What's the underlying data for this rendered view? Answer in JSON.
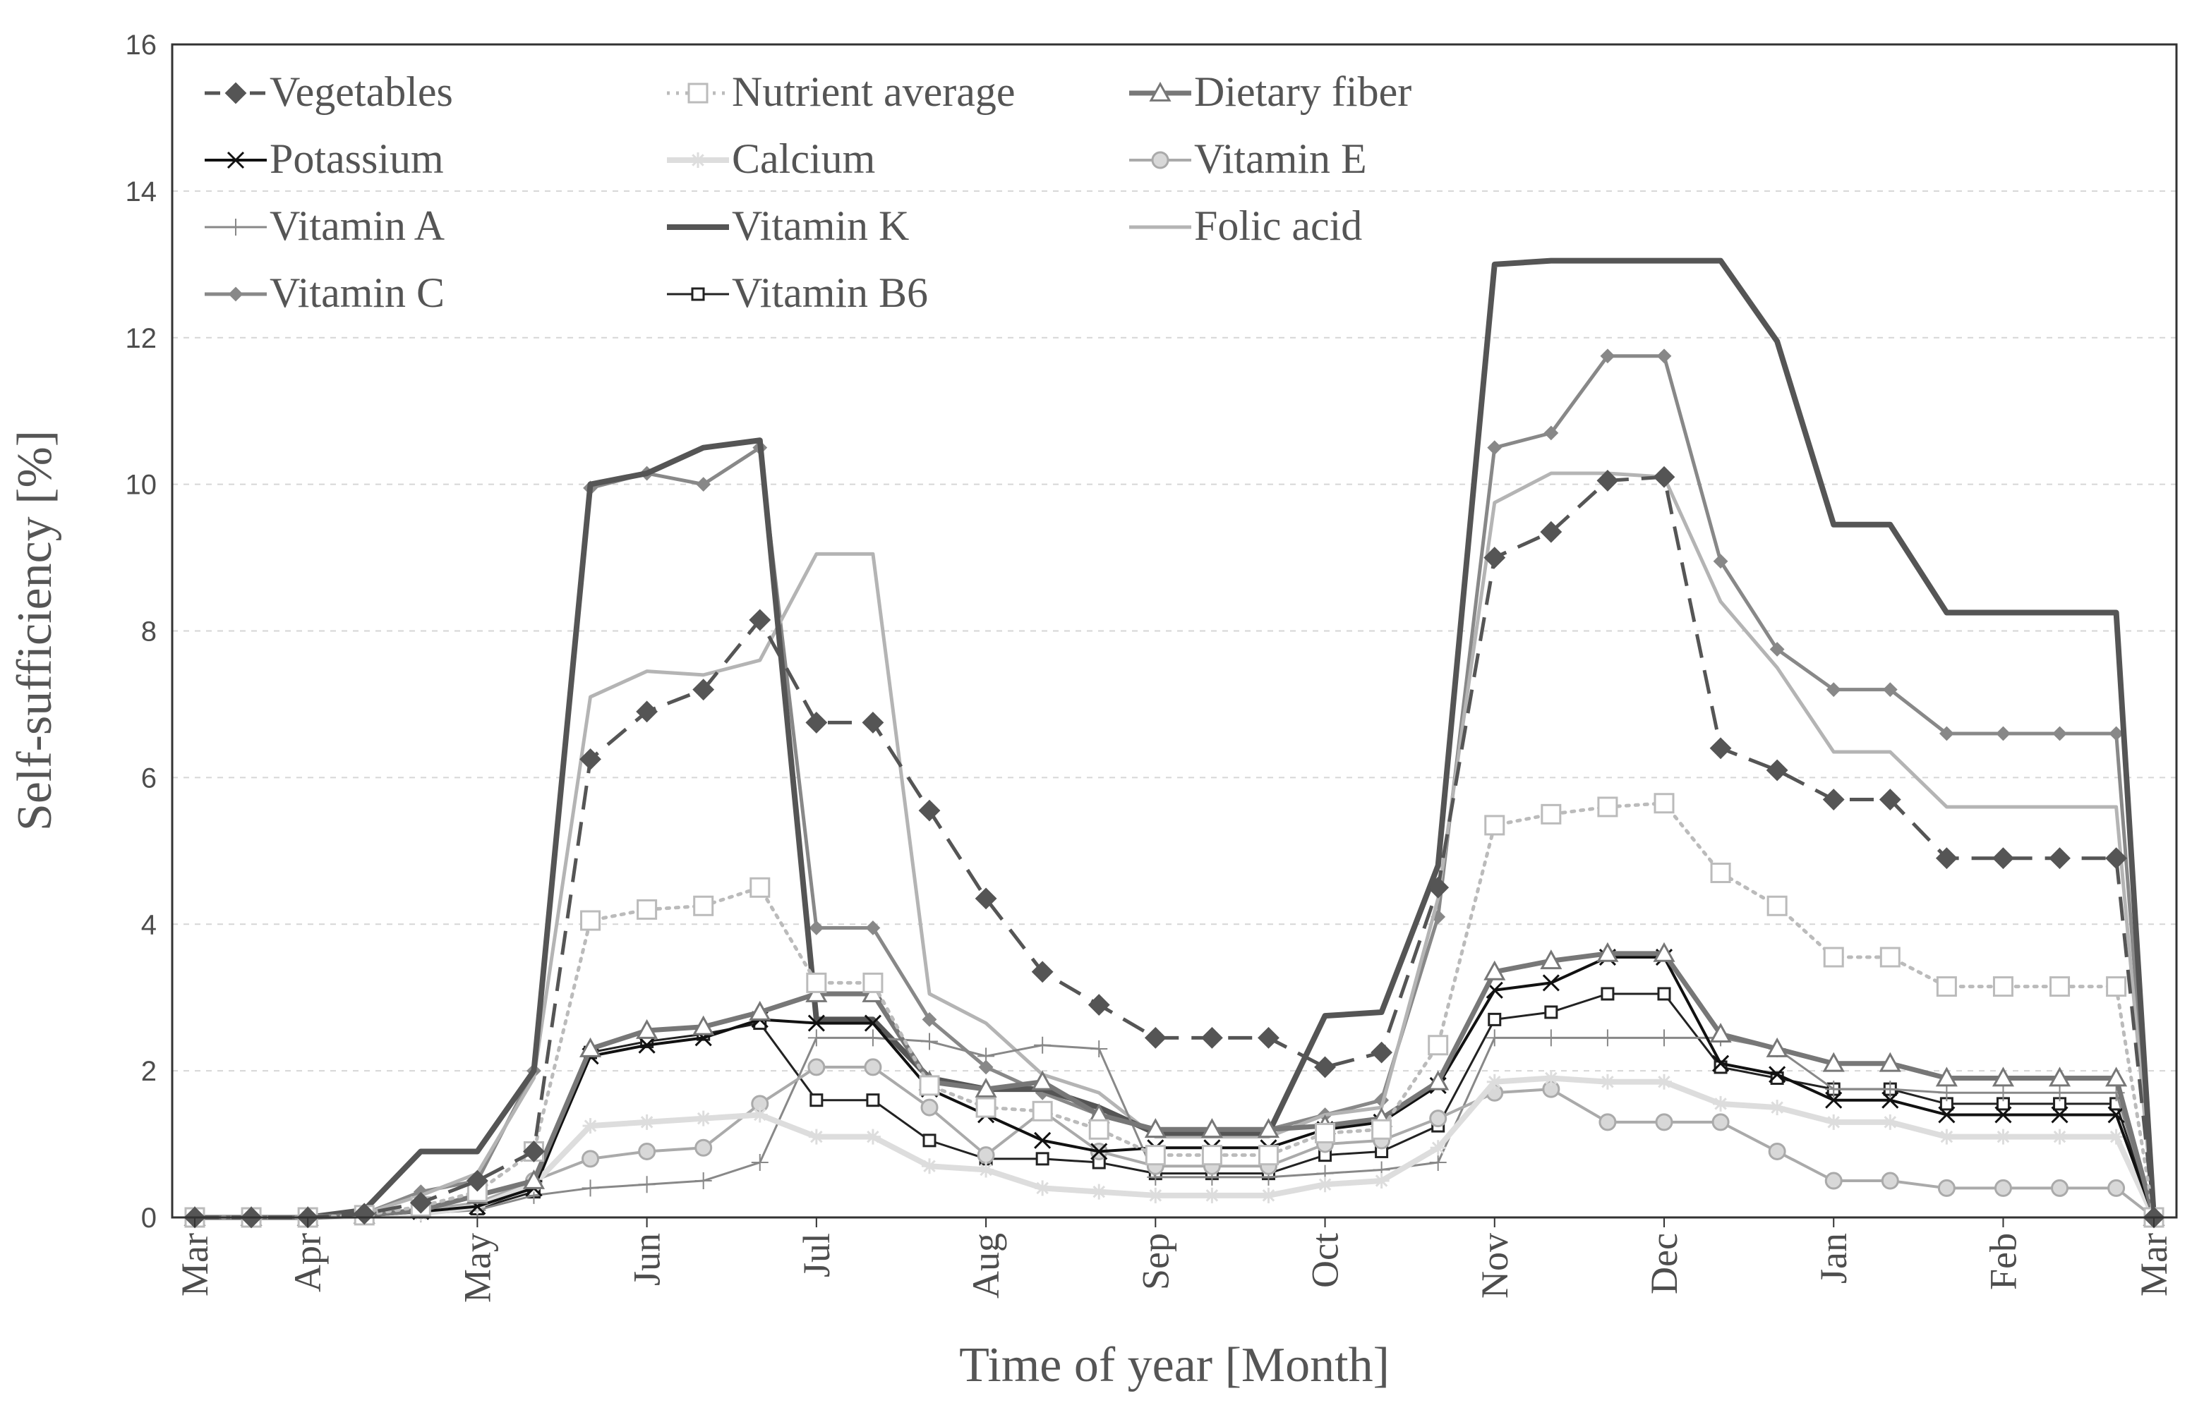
{
  "chart_data": {
    "type": "line",
    "title": "",
    "xlabel": "Time of year [Month]",
    "ylabel": "Self-sufficiency [%]",
    "ylim": [
      0,
      16
    ],
    "yticks": [
      0,
      2,
      4,
      6,
      8,
      10,
      12,
      14,
      16
    ],
    "xlim": [
      0,
      52
    ],
    "month_ticks": [
      {
        "label": "Mar",
        "x": 0
      },
      {
        "label": "Apr",
        "x": 3
      },
      {
        "label": "May",
        "x": 7.5
      },
      {
        "label": "Jun",
        "x": 12
      },
      {
        "label": "Jul",
        "x": 16.5
      },
      {
        "label": "Aug",
        "x": 21
      },
      {
        "label": "Sep",
        "x": 25.5
      },
      {
        "label": "Oct",
        "x": 30
      },
      {
        "label": "Nov",
        "x": 34.5
      },
      {
        "label": "Dec",
        "x": 39
      },
      {
        "label": "Jan",
        "x": 43.5
      },
      {
        "label": "Feb",
        "x": 48
      },
      {
        "label": "Mar",
        "x": 52
      }
    ],
    "grid": true,
    "legend_position": "top-left",
    "x": [
      0,
      1.5,
      3,
      4.5,
      6,
      7.5,
      9,
      10.5,
      12,
      13.5,
      15,
      16.5,
      18,
      19.5,
      21,
      22.5,
      24,
      25.5,
      27,
      28.5,
      30,
      31.5,
      33,
      34.5,
      36,
      37.5,
      39,
      40.5,
      42,
      43.5,
      45,
      46.5,
      48,
      49.5,
      51,
      52
    ],
    "series": [
      {
        "name": "Vegetables",
        "color": "#555555",
        "width": 5,
        "dash": "34 18",
        "marker": "diamond",
        "markerSize": 28,
        "markerFill": "#555555",
        "values": [
          0,
          0,
          0,
          0.05,
          0.2,
          0.5,
          0.9,
          6.25,
          6.9,
          7.2,
          8.15,
          6.75,
          6.75,
          5.55,
          4.35,
          3.35,
          2.9,
          2.45,
          2.45,
          2.45,
          2.05,
          2.25,
          4.5,
          9.0,
          9.35,
          10.05,
          10.1,
          6.4,
          6.1,
          5.7,
          5.7,
          4.9,
          4.9,
          4.9,
          4.9,
          0
        ]
      },
      {
        "name": "Nutrient average",
        "color": "#bbbbbb",
        "width": 5,
        "dash": "4 9",
        "marker": "square",
        "markerSize": 26,
        "markerFill": "#ffffff",
        "values": [
          0,
          0,
          0,
          0.03,
          0.15,
          0.35,
          0.9,
          4.05,
          4.2,
          4.25,
          4.5,
          3.2,
          3.2,
          1.8,
          1.5,
          1.45,
          1.2,
          0.85,
          0.85,
          0.85,
          1.15,
          1.2,
          2.35,
          5.35,
          5.5,
          5.6,
          5.65,
          4.7,
          4.25,
          3.55,
          3.55,
          3.15,
          3.15,
          3.15,
          3.15,
          0
        ]
      },
      {
        "name": "Dietary fiber",
        "color": "#777777",
        "width": 7,
        "dash": "",
        "marker": "triangle",
        "markerSize": 26,
        "markerFill": "#ffffff",
        "values": [
          0,
          0,
          0,
          0.03,
          0.1,
          0.3,
          0.5,
          2.3,
          2.55,
          2.6,
          2.8,
          3.05,
          3.05,
          1.85,
          1.75,
          1.85,
          1.4,
          1.2,
          1.2,
          1.2,
          1.25,
          1.35,
          1.85,
          3.35,
          3.5,
          3.6,
          3.6,
          2.5,
          2.3,
          2.1,
          2.1,
          1.9,
          1.9,
          1.9,
          1.9,
          0
        ]
      },
      {
        "name": "Potassium",
        "color": "#111111",
        "width": 4,
        "dash": "",
        "marker": "x",
        "markerSize": 22,
        "markerFill": "none",
        "values": [
          0,
          0,
          0,
          0.02,
          0.08,
          0.15,
          0.4,
          2.2,
          2.35,
          2.45,
          2.7,
          2.65,
          2.65,
          1.75,
          1.4,
          1.05,
          0.9,
          0.95,
          0.95,
          0.95,
          1.2,
          1.3,
          1.8,
          3.1,
          3.2,
          3.55,
          3.55,
          2.1,
          1.95,
          1.6,
          1.6,
          1.4,
          1.4,
          1.4,
          1.4,
          0
        ]
      },
      {
        "name": "Calcium",
        "color": "#dddddd",
        "width": 8,
        "dash": "",
        "marker": "star",
        "markerSize": 22,
        "markerFill": "none",
        "values": [
          0,
          0,
          0,
          0.02,
          0.05,
          0.15,
          0.45,
          1.25,
          1.3,
          1.35,
          1.4,
          1.1,
          1.1,
          0.7,
          0.65,
          0.4,
          0.35,
          0.3,
          0.3,
          0.3,
          0.45,
          0.5,
          0.95,
          1.85,
          1.9,
          1.85,
          1.85,
          1.55,
          1.5,
          1.3,
          1.3,
          1.1,
          1.1,
          1.1,
          1.1,
          0
        ]
      },
      {
        "name": "Vitamin E",
        "color": "#aaaaaa",
        "width": 4,
        "dash": "",
        "marker": "circle",
        "markerSize": 22,
        "markerFill": "#d8d8d8",
        "values": [
          0,
          0,
          0,
          0.02,
          0.1,
          0.2,
          0.5,
          0.8,
          0.9,
          0.95,
          1.55,
          2.05,
          2.05,
          1.5,
          0.85,
          1.45,
          0.9,
          0.7,
          0.7,
          0.7,
          1.0,
          1.05,
          1.35,
          1.7,
          1.75,
          1.3,
          1.3,
          1.3,
          0.9,
          0.5,
          0.5,
          0.4,
          0.4,
          0.4,
          0.4,
          0
        ]
      },
      {
        "name": "Vitamin A",
        "color": "#888888",
        "width": 3,
        "dash": "",
        "marker": "plus",
        "markerSize": 24,
        "markerFill": "none",
        "values": [
          0,
          0,
          0,
          0.02,
          0.05,
          0.1,
          0.3,
          0.4,
          0.45,
          0.5,
          0.75,
          2.45,
          2.45,
          2.4,
          2.2,
          2.35,
          2.3,
          0.55,
          0.55,
          0.55,
          0.6,
          0.65,
          0.75,
          2.45,
          2.45,
          2.45,
          2.45,
          2.45,
          2.3,
          1.75,
          1.75,
          1.7,
          1.7,
          1.7,
          1.7,
          0
        ]
      },
      {
        "name": "Vitamin K",
        "color": "#555555",
        "width": 8,
        "dash": "",
        "marker": "none",
        "markerSize": 0,
        "markerFill": "none",
        "values": [
          0,
          0,
          0,
          0.1,
          0.9,
          0.9,
          2.0,
          10.0,
          10.15,
          10.5,
          10.6,
          2.7,
          2.7,
          1.9,
          1.75,
          1.75,
          1.5,
          1.15,
          1.15,
          1.15,
          2.75,
          2.8,
          4.8,
          13.0,
          13.05,
          13.05,
          13.05,
          13.05,
          11.95,
          9.45,
          9.45,
          8.25,
          8.25,
          8.25,
          8.25,
          0
        ]
      },
      {
        "name": "Folic acid",
        "color": "#b4b4b4",
        "width": 5,
        "dash": "",
        "marker": "none",
        "markerSize": 0,
        "markerFill": "none",
        "values": [
          0,
          0,
          0,
          0.05,
          0.3,
          0.6,
          1.9,
          7.1,
          7.45,
          7.4,
          7.6,
          9.05,
          9.05,
          3.05,
          2.65,
          1.95,
          1.7,
          1.1,
          1.1,
          1.1,
          1.4,
          1.5,
          4.35,
          9.75,
          10.15,
          10.15,
          10.1,
          8.4,
          7.5,
          6.35,
          6.35,
          5.6,
          5.6,
          5.6,
          5.6,
          0
        ]
      },
      {
        "name": "Vitamin C",
        "color": "#888888",
        "width": 5,
        "dash": "",
        "marker": "diamond",
        "markerSize": 18,
        "markerFill": "#888888",
        "values": [
          0,
          0,
          0,
          0.05,
          0.35,
          0.5,
          2.0,
          9.95,
          10.15,
          10.0,
          10.5,
          3.95,
          3.95,
          2.7,
          2.05,
          1.7,
          1.4,
          1.2,
          1.2,
          1.2,
          1.4,
          1.6,
          4.1,
          10.5,
          10.7,
          11.75,
          11.75,
          8.95,
          7.75,
          7.2,
          7.2,
          6.6,
          6.6,
          6.6,
          6.6,
          0
        ]
      },
      {
        "name": "Vitamin B6",
        "color": "#222222",
        "width": 3,
        "dash": "",
        "marker": "square",
        "markerSize": 16,
        "markerFill": "#ffffff",
        "values": [
          0,
          0,
          0,
          0.02,
          0.08,
          0.12,
          0.35,
          2.25,
          2.4,
          2.5,
          2.65,
          1.6,
          1.6,
          1.05,
          0.8,
          0.8,
          0.75,
          0.6,
          0.6,
          0.6,
          0.85,
          0.9,
          1.25,
          2.7,
          2.8,
          3.05,
          3.05,
          2.05,
          1.9,
          1.75,
          1.75,
          1.55,
          1.55,
          1.55,
          1.55,
          0
        ]
      }
    ]
  }
}
